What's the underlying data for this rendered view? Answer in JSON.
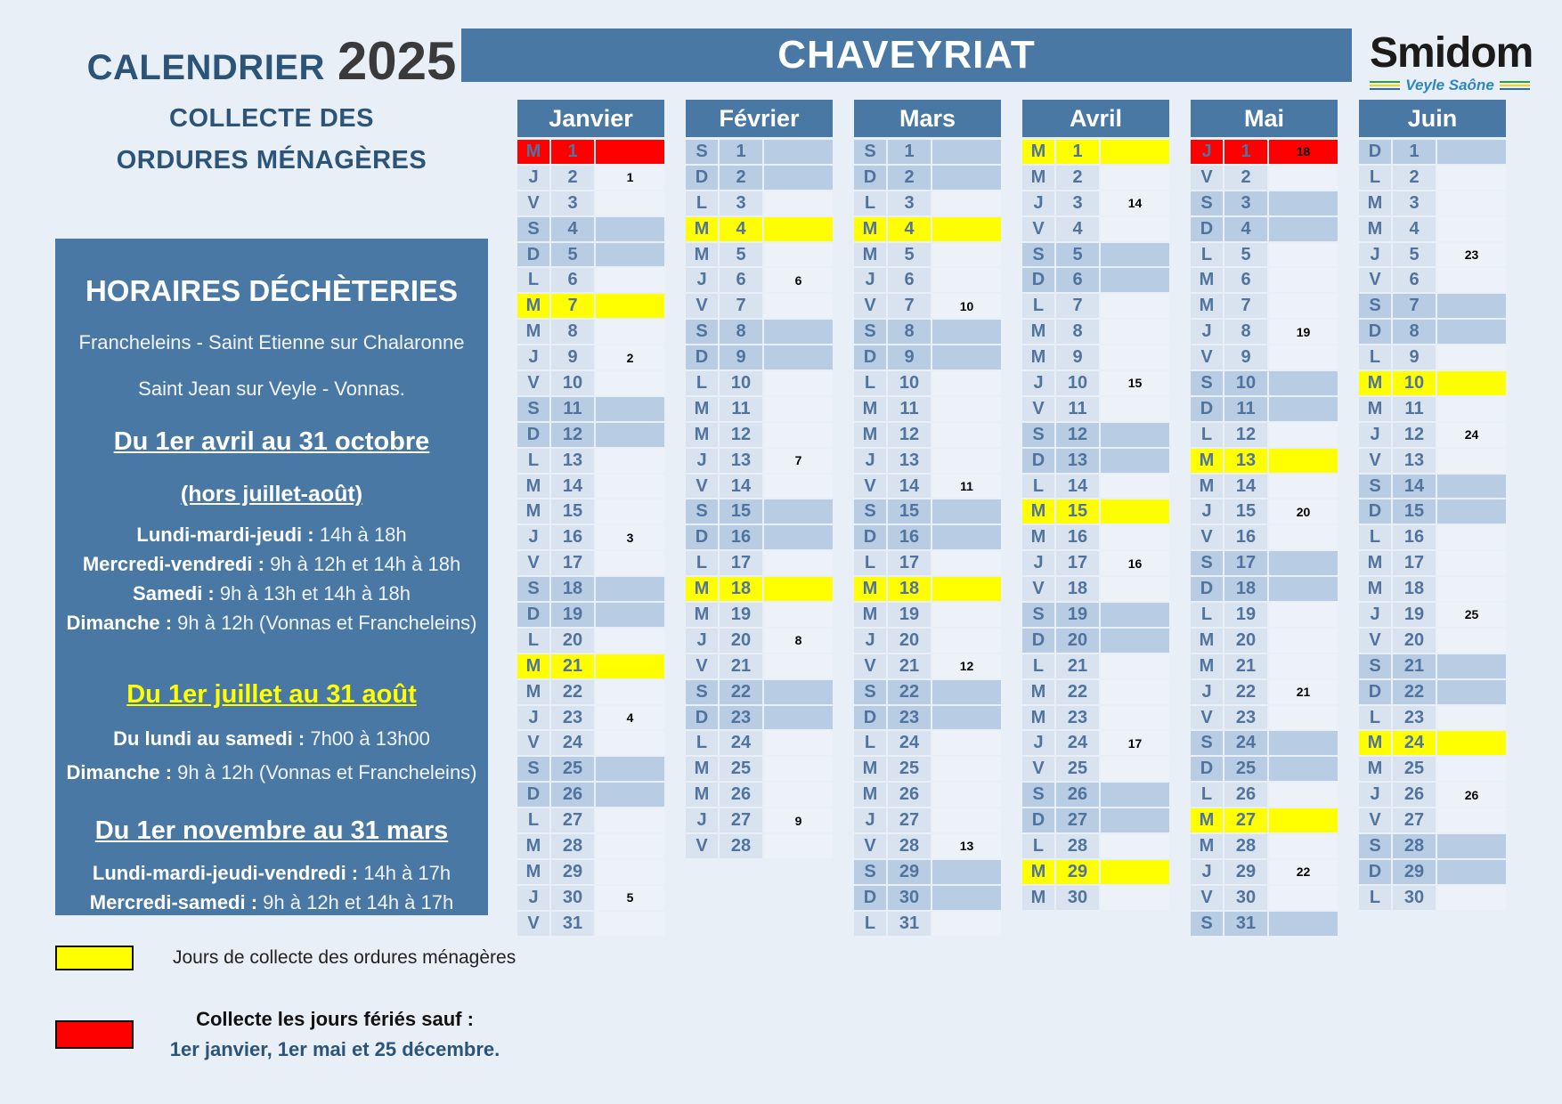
{
  "page": {
    "title_prefix": "CALENDRIER",
    "title_year": "2025",
    "subtitle": [
      "COLLECTE DES",
      "ORDURES MÉNAGÈRES"
    ],
    "commune_banner": "CHAVEYRIAT",
    "logo": {
      "name": "Smidom",
      "tagline": "Veyle Saône"
    }
  },
  "horaires_dechetteries": {
    "title": "HORAIRES DÉCHÈTERIES",
    "locations": [
      "Francheleins - Saint Etienne sur Chalaronne",
      "Saint Jean sur Veyle - Vonnas."
    ],
    "sections": [
      {
        "heading": "Du 1er avril au 31 octobre",
        "subheading": "(hors juillet-août)",
        "heading_style": "white",
        "lines": [
          {
            "label": "Lundi-mardi-jeudi :",
            "value": "14h à 18h"
          },
          {
            "label": "Mercredi-vendredi :",
            "value": "9h à 12h et 14h à 18h"
          },
          {
            "label": "Samedi :",
            "value": "9h à 13h et 14h à 18h"
          },
          {
            "label": "Dimanche :",
            "value": "9h à 12h (Vonnas et Francheleins)"
          }
        ]
      },
      {
        "heading": "Du 1er juillet au 31 août",
        "subheading": "",
        "heading_style": "yellow",
        "lines": [
          {
            "label": "Du lundi au samedi :",
            "value": "7h00 à 13h00"
          },
          {
            "label": "Dimanche :",
            "value": "9h à 12h (Vonnas et Francheleins)"
          }
        ]
      },
      {
        "heading": "Du 1er novembre au 31 mars",
        "subheading": "",
        "heading_style": "white",
        "lines": [
          {
            "label": "Lundi-mardi-jeudi-vendredi :",
            "value": "14h à 17h"
          },
          {
            "label": "Mercredi-samedi :",
            "value": "9h à 12h et 14h à 17h"
          }
        ]
      }
    ]
  },
  "legend": {
    "yellow_label": "Jours de collecte des ordures ménagères",
    "red_label_bold": "Collecte les jours fériés sauf :",
    "red_label_detail": "1er janvier, 1er mai et 25 décembre."
  },
  "colors": {
    "background": "#e9eff7",
    "panel_blue": "#4a78a5",
    "title_blue": "#2b5478",
    "weekday_cell": "#d9e3f0",
    "weekend_cell": "#b8cde4",
    "week_number_cell": "#edf2f9",
    "day_text": "#50749d",
    "collection_yellow": "#ffff00",
    "holiday_red": "#fe0000"
  },
  "calendar": {
    "months": [
      {
        "id": "janvier",
        "name": "Janvier",
        "days": [
          [
            "M",
            1,
            "red",
            ""
          ],
          [
            "J",
            2,
            "",
            "1"
          ],
          [
            "V",
            3,
            "",
            ""
          ],
          [
            "S",
            4,
            "",
            ""
          ],
          [
            "D",
            5,
            "",
            ""
          ],
          [
            "L",
            6,
            "",
            ""
          ],
          [
            "M",
            7,
            "yellow",
            ""
          ],
          [
            "M",
            8,
            "",
            ""
          ],
          [
            "J",
            9,
            "",
            "2"
          ],
          [
            "V",
            10,
            "",
            ""
          ],
          [
            "S",
            11,
            "",
            ""
          ],
          [
            "D",
            12,
            "",
            ""
          ],
          [
            "L",
            13,
            "",
            ""
          ],
          [
            "M",
            14,
            "",
            ""
          ],
          [
            "M",
            15,
            "",
            ""
          ],
          [
            "J",
            16,
            "",
            "3"
          ],
          [
            "V",
            17,
            "",
            ""
          ],
          [
            "S",
            18,
            "",
            ""
          ],
          [
            "D",
            19,
            "",
            ""
          ],
          [
            "L",
            20,
            "",
            ""
          ],
          [
            "M",
            21,
            "yellow",
            ""
          ],
          [
            "M",
            22,
            "",
            ""
          ],
          [
            "J",
            23,
            "",
            "4"
          ],
          [
            "V",
            24,
            "",
            ""
          ],
          [
            "S",
            25,
            "",
            ""
          ],
          [
            "D",
            26,
            "",
            ""
          ],
          [
            "L",
            27,
            "",
            ""
          ],
          [
            "M",
            28,
            "",
            ""
          ],
          [
            "M",
            29,
            "",
            ""
          ],
          [
            "J",
            30,
            "",
            "5"
          ],
          [
            "V",
            31,
            "",
            ""
          ]
        ]
      },
      {
        "id": "fevrier",
        "name": "Février",
        "days": [
          [
            "S",
            1,
            "",
            ""
          ],
          [
            "D",
            2,
            "",
            ""
          ],
          [
            "L",
            3,
            "",
            ""
          ],
          [
            "M",
            4,
            "yellow",
            ""
          ],
          [
            "M",
            5,
            "",
            ""
          ],
          [
            "J",
            6,
            "",
            "6"
          ],
          [
            "V",
            7,
            "",
            ""
          ],
          [
            "S",
            8,
            "",
            ""
          ],
          [
            "D",
            9,
            "",
            ""
          ],
          [
            "L",
            10,
            "",
            ""
          ],
          [
            "M",
            11,
            "",
            ""
          ],
          [
            "M",
            12,
            "",
            ""
          ],
          [
            "J",
            13,
            "",
            "7"
          ],
          [
            "V",
            14,
            "",
            ""
          ],
          [
            "S",
            15,
            "",
            ""
          ],
          [
            "D",
            16,
            "",
            ""
          ],
          [
            "L",
            17,
            "",
            ""
          ],
          [
            "M",
            18,
            "yellow",
            ""
          ],
          [
            "M",
            19,
            "",
            ""
          ],
          [
            "J",
            20,
            "",
            "8"
          ],
          [
            "V",
            21,
            "",
            ""
          ],
          [
            "S",
            22,
            "",
            ""
          ],
          [
            "D",
            23,
            "",
            ""
          ],
          [
            "L",
            24,
            "",
            ""
          ],
          [
            "M",
            25,
            "",
            ""
          ],
          [
            "M",
            26,
            "",
            ""
          ],
          [
            "J",
            27,
            "",
            "9"
          ],
          [
            "V",
            28,
            "",
            ""
          ]
        ]
      },
      {
        "id": "mars",
        "name": "Mars",
        "days": [
          [
            "S",
            1,
            "",
            ""
          ],
          [
            "D",
            2,
            "",
            ""
          ],
          [
            "L",
            3,
            "",
            ""
          ],
          [
            "M",
            4,
            "yellow",
            ""
          ],
          [
            "M",
            5,
            "",
            ""
          ],
          [
            "J",
            6,
            "",
            ""
          ],
          [
            "V",
            7,
            "",
            "10"
          ],
          [
            "S",
            8,
            "",
            ""
          ],
          [
            "D",
            9,
            "",
            ""
          ],
          [
            "L",
            10,
            "",
            ""
          ],
          [
            "M",
            11,
            "",
            ""
          ],
          [
            "M",
            12,
            "",
            ""
          ],
          [
            "J",
            13,
            "",
            ""
          ],
          [
            "V",
            14,
            "",
            "11"
          ],
          [
            "S",
            15,
            "",
            ""
          ],
          [
            "D",
            16,
            "",
            ""
          ],
          [
            "L",
            17,
            "",
            ""
          ],
          [
            "M",
            18,
            "yellow",
            ""
          ],
          [
            "M",
            19,
            "",
            ""
          ],
          [
            "J",
            20,
            "",
            ""
          ],
          [
            "V",
            21,
            "",
            "12"
          ],
          [
            "S",
            22,
            "",
            ""
          ],
          [
            "D",
            23,
            "",
            ""
          ],
          [
            "L",
            24,
            "",
            ""
          ],
          [
            "M",
            25,
            "",
            ""
          ],
          [
            "M",
            26,
            "",
            ""
          ],
          [
            "J",
            27,
            "",
            ""
          ],
          [
            "V",
            28,
            "",
            "13"
          ],
          [
            "S",
            29,
            "",
            ""
          ],
          [
            "D",
            30,
            "",
            ""
          ],
          [
            "L",
            31,
            "",
            ""
          ]
        ]
      },
      {
        "id": "avril",
        "name": "Avril",
        "days": [
          [
            "M",
            1,
            "yellow",
            ""
          ],
          [
            "M",
            2,
            "",
            ""
          ],
          [
            "J",
            3,
            "",
            "14"
          ],
          [
            "V",
            4,
            "",
            ""
          ],
          [
            "S",
            5,
            "",
            ""
          ],
          [
            "D",
            6,
            "",
            ""
          ],
          [
            "L",
            7,
            "",
            ""
          ],
          [
            "M",
            8,
            "",
            ""
          ],
          [
            "M",
            9,
            "",
            ""
          ],
          [
            "J",
            10,
            "",
            "15"
          ],
          [
            "V",
            11,
            "",
            ""
          ],
          [
            "S",
            12,
            "",
            ""
          ],
          [
            "D",
            13,
            "",
            ""
          ],
          [
            "L",
            14,
            "",
            ""
          ],
          [
            "M",
            15,
            "yellow",
            ""
          ],
          [
            "M",
            16,
            "",
            ""
          ],
          [
            "J",
            17,
            "",
            "16"
          ],
          [
            "V",
            18,
            "",
            ""
          ],
          [
            "S",
            19,
            "",
            ""
          ],
          [
            "D",
            20,
            "",
            ""
          ],
          [
            "L",
            21,
            "",
            ""
          ],
          [
            "M",
            22,
            "",
            ""
          ],
          [
            "M",
            23,
            "",
            ""
          ],
          [
            "J",
            24,
            "",
            "17"
          ],
          [
            "V",
            25,
            "",
            ""
          ],
          [
            "S",
            26,
            "",
            ""
          ],
          [
            "D",
            27,
            "",
            ""
          ],
          [
            "L",
            28,
            "",
            ""
          ],
          [
            "M",
            29,
            "yellow",
            ""
          ],
          [
            "M",
            30,
            "",
            ""
          ]
        ]
      },
      {
        "id": "mai",
        "name": "Mai",
        "days": [
          [
            "J",
            1,
            "red",
            "18"
          ],
          [
            "V",
            2,
            "",
            ""
          ],
          [
            "S",
            3,
            "",
            ""
          ],
          [
            "D",
            4,
            "",
            ""
          ],
          [
            "L",
            5,
            "",
            ""
          ],
          [
            "M",
            6,
            "",
            ""
          ],
          [
            "M",
            7,
            "",
            ""
          ],
          [
            "J",
            8,
            "",
            "19"
          ],
          [
            "V",
            9,
            "",
            ""
          ],
          [
            "S",
            10,
            "",
            ""
          ],
          [
            "D",
            11,
            "",
            ""
          ],
          [
            "L",
            12,
            "",
            ""
          ],
          [
            "M",
            13,
            "yellow",
            ""
          ],
          [
            "M",
            14,
            "",
            ""
          ],
          [
            "J",
            15,
            "",
            "20"
          ],
          [
            "V",
            16,
            "",
            ""
          ],
          [
            "S",
            17,
            "",
            ""
          ],
          [
            "D",
            18,
            "",
            ""
          ],
          [
            "L",
            19,
            "",
            ""
          ],
          [
            "M",
            20,
            "",
            ""
          ],
          [
            "M",
            21,
            "",
            ""
          ],
          [
            "J",
            22,
            "",
            "21"
          ],
          [
            "V",
            23,
            "",
            ""
          ],
          [
            "S",
            24,
            "",
            ""
          ],
          [
            "D",
            25,
            "",
            ""
          ],
          [
            "L",
            26,
            "",
            ""
          ],
          [
            "M",
            27,
            "yellow",
            ""
          ],
          [
            "M",
            28,
            "",
            ""
          ],
          [
            "J",
            29,
            "",
            "22"
          ],
          [
            "V",
            30,
            "",
            ""
          ],
          [
            "S",
            31,
            "",
            ""
          ]
        ]
      },
      {
        "id": "juin",
        "name": "Juin",
        "days": [
          [
            "D",
            1,
            "",
            ""
          ],
          [
            "L",
            2,
            "",
            ""
          ],
          [
            "M",
            3,
            "",
            ""
          ],
          [
            "M",
            4,
            "",
            ""
          ],
          [
            "J",
            5,
            "",
            "23"
          ],
          [
            "V",
            6,
            "",
            ""
          ],
          [
            "S",
            7,
            "",
            ""
          ],
          [
            "D",
            8,
            "",
            ""
          ],
          [
            "L",
            9,
            "",
            ""
          ],
          [
            "M",
            10,
            "yellow",
            ""
          ],
          [
            "M",
            11,
            "",
            ""
          ],
          [
            "J",
            12,
            "",
            "24"
          ],
          [
            "V",
            13,
            "",
            ""
          ],
          [
            "S",
            14,
            "",
            ""
          ],
          [
            "D",
            15,
            "",
            ""
          ],
          [
            "L",
            16,
            "",
            ""
          ],
          [
            "M",
            17,
            "",
            ""
          ],
          [
            "M",
            18,
            "",
            ""
          ],
          [
            "J",
            19,
            "",
            "25"
          ],
          [
            "V",
            20,
            "",
            ""
          ],
          [
            "S",
            21,
            "",
            ""
          ],
          [
            "D",
            22,
            "",
            ""
          ],
          [
            "L",
            23,
            "",
            ""
          ],
          [
            "M",
            24,
            "yellow",
            ""
          ],
          [
            "M",
            25,
            "",
            ""
          ],
          [
            "J",
            26,
            "",
            "26"
          ],
          [
            "V",
            27,
            "",
            ""
          ],
          [
            "S",
            28,
            "",
            ""
          ],
          [
            "D",
            29,
            "",
            ""
          ],
          [
            "L",
            30,
            "",
            ""
          ]
        ]
      }
    ]
  }
}
